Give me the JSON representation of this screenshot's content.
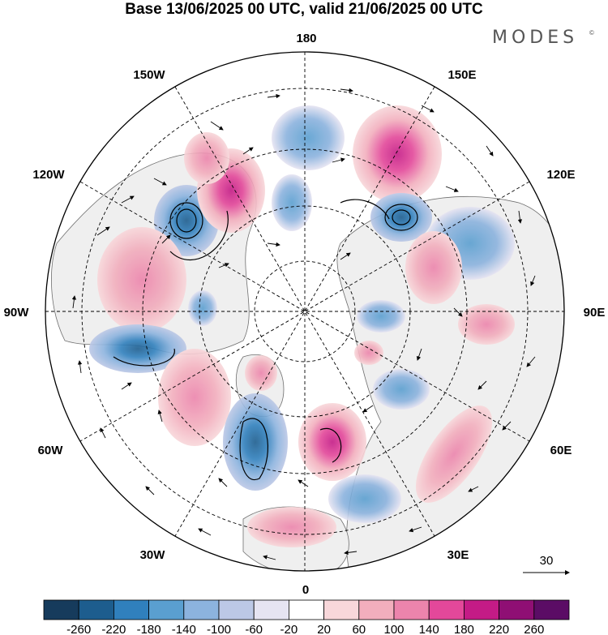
{
  "title": "Base 13/06/2025 00 UTC, valid 21/06/2025 00 UTC",
  "brand": "MODES",
  "brand_mark": "©",
  "map": {
    "projection": "north-polar-stereographic",
    "longitude_labels": [
      "180",
      "150E",
      "120E",
      "90E",
      "60E",
      "30E",
      "0",
      "30W",
      "60W",
      "90W",
      "120W",
      "150W"
    ],
    "vector_reference": {
      "label": "30"
    }
  },
  "colorbar": {
    "ticks": [
      "-260",
      "-220",
      "-180",
      "-140",
      "-100",
      "-60",
      "-20",
      "20",
      "60",
      "100",
      "140",
      "180",
      "220",
      "260"
    ],
    "colors": [
      "#163b5c",
      "#1d5d8e",
      "#3080bd",
      "#5a9fd0",
      "#8cb3de",
      "#bcc8e6",
      "#e6e4f2",
      "#ffffff",
      "#f8d7da",
      "#f2aebd",
      "#ec84ac",
      "#e3489a",
      "#c41b86",
      "#8f0f74",
      "#5b0c65"
    ]
  },
  "colors": {
    "land": "#efefef",
    "ocean": "#ffffff",
    "coast": "#6f6f6f",
    "negative": "#5a9fd0",
    "positive": "#e3489a"
  }
}
